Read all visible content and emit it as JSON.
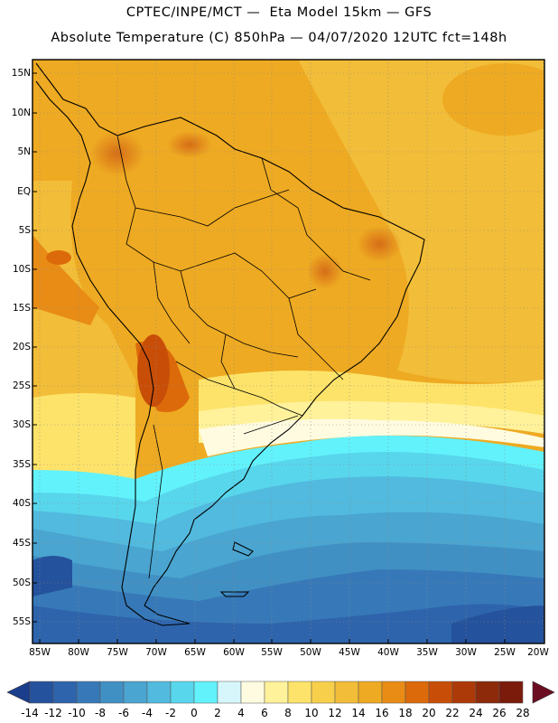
{
  "title_line1": "CPTEC/INPE/MCT —  Eta Model 15km — GFS",
  "title_line2": "Absolute Temperature (C) 850hPa — 04/07/2020 12UTC fct=148h",
  "map": {
    "lat_labels": [
      "15N",
      "10N",
      "5N",
      "EQ",
      "5S",
      "10S",
      "15S",
      "20S",
      "25S",
      "30S",
      "35S",
      "40S",
      "45S",
      "50S",
      "55S"
    ],
    "lon_labels": [
      "85W",
      "80W",
      "75W",
      "70W",
      "65W",
      "60W",
      "55W",
      "50W",
      "45W",
      "40W",
      "35W",
      "30W",
      "25W",
      "20W"
    ]
  },
  "colorbar": {
    "labels": [
      "-14",
      "-12",
      "-10",
      "-8",
      "-6",
      "-4",
      "-2",
      "0",
      "2",
      "4",
      "6",
      "8",
      "10",
      "12",
      "14",
      "16",
      "18",
      "20",
      "22",
      "24",
      "26",
      "28"
    ],
    "colors": [
      "#1a3d8c",
      "#25529c",
      "#2e64ac",
      "#3779b8",
      "#4190c4",
      "#4aa5d0",
      "#52bade",
      "#58d6ec",
      "#62f2fb",
      "#d6f6fb",
      "#fffbe0",
      "#fff29a",
      "#fde36a",
      "#f8cf4a",
      "#f2bd38",
      "#eeaa22",
      "#e88c16",
      "#dc6a0a",
      "#c84e08",
      "#ac3a08",
      "#8c2a0a",
      "#7a1b0c",
      "#6c0e22"
    ]
  }
}
